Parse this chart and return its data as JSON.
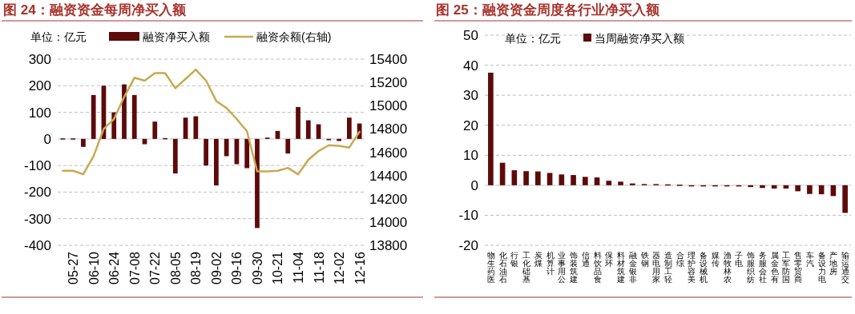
{
  "chart_data": [
    {
      "type": "bar",
      "title": "图 24：融资资金每周净买入额",
      "categories": [
        null,
        "05-27",
        null,
        "06-10",
        null,
        "06-24",
        null,
        "07-08",
        null,
        "07-22",
        null,
        "08-05",
        null,
        "08-19",
        null,
        "09-02",
        null,
        "09-16",
        null,
        "09-30",
        null,
        "10-21",
        null,
        "11-04",
        null,
        "11-18",
        null,
        "12-02",
        null,
        "12-16"
      ],
      "series": [
        {
          "name": "融资净买入额",
          "type": "bar",
          "color": "#5c0a0a",
          "values": [
            2,
            2,
            -30,
            165,
            200,
            100,
            205,
            165,
            -20,
            65,
            3,
            -130,
            80,
            85,
            -100,
            -175,
            -65,
            -95,
            -110,
            -335,
            5,
            30,
            -55,
            120,
            70,
            55,
            -5,
            -8,
            80,
            58
          ]
        },
        {
          "name": "融资余额(右轴)",
          "type": "line",
          "axis": "y2",
          "color": "#c8a951",
          "values": [
            14440,
            14440,
            14410,
            14565,
            14800,
            14885,
            15075,
            15240,
            15215,
            15280,
            15280,
            15150,
            15230,
            15310,
            15215,
            15040,
            14980,
            14885,
            14780,
            14435,
            14435,
            14440,
            14465,
            14410,
            14535,
            14610,
            14660,
            14655,
            14640,
            14775
          ]
        }
      ],
      "ylim": [
        -400,
        300
      ],
      "yticks": [
        -400,
        -300,
        -200,
        -100,
        0,
        100,
        200,
        300
      ],
      "y2lim": [
        13800,
        15400
      ],
      "y2ticks": [
        13800,
        14000,
        14200,
        14400,
        14600,
        14800,
        15000,
        15200,
        15400
      ],
      "grid": "y",
      "legend": "top",
      "annotations": [
        "单位：亿元"
      ]
    },
    {
      "type": "bar",
      "title": "图 25：融资资金周度各行业净买入额",
      "categories": [
        "医药生物",
        "石油石化",
        "银行",
        "基础化工",
        "煤炭",
        "计算机",
        "公用事业",
        "建筑装饰",
        "通信",
        "食品饮料",
        "环保",
        "建筑材料",
        "非银金融",
        "钢铁",
        "家用电器",
        "轻工制造",
        "综合",
        "美容护理",
        "机械设备",
        "传媒",
        "农林牧渔",
        "电子",
        "纺织服饰",
        "社会服务",
        "有色金属",
        "国防军工",
        "商贸零售",
        "汽车",
        "电力设备",
        "房地产",
        "交通运输"
      ],
      "series": [
        {
          "name": "当周融资净买入额",
          "type": "bar",
          "color": "#5c0a0a",
          "values": [
            37.5,
            7.5,
            5.0,
            4.7,
            4.6,
            4.1,
            3.6,
            3.4,
            2.8,
            2.6,
            1.5,
            1.2,
            0.6,
            0.4,
            0.4,
            0.3,
            0.2,
            -0.1,
            -0.2,
            -0.3,
            -0.3,
            -0.4,
            -0.6,
            -0.9,
            -1.1,
            -1.1,
            -2.0,
            -2.9,
            -3.0,
            -3.6,
            -9.2
          ]
        }
      ],
      "ylim": [
        -20,
        50
      ],
      "yticks": [
        -20,
        -10,
        0,
        10,
        20,
        30,
        40,
        50
      ],
      "grid": "y",
      "legend": "top left",
      "annotations": [
        "单位：亿元"
      ]
    }
  ]
}
